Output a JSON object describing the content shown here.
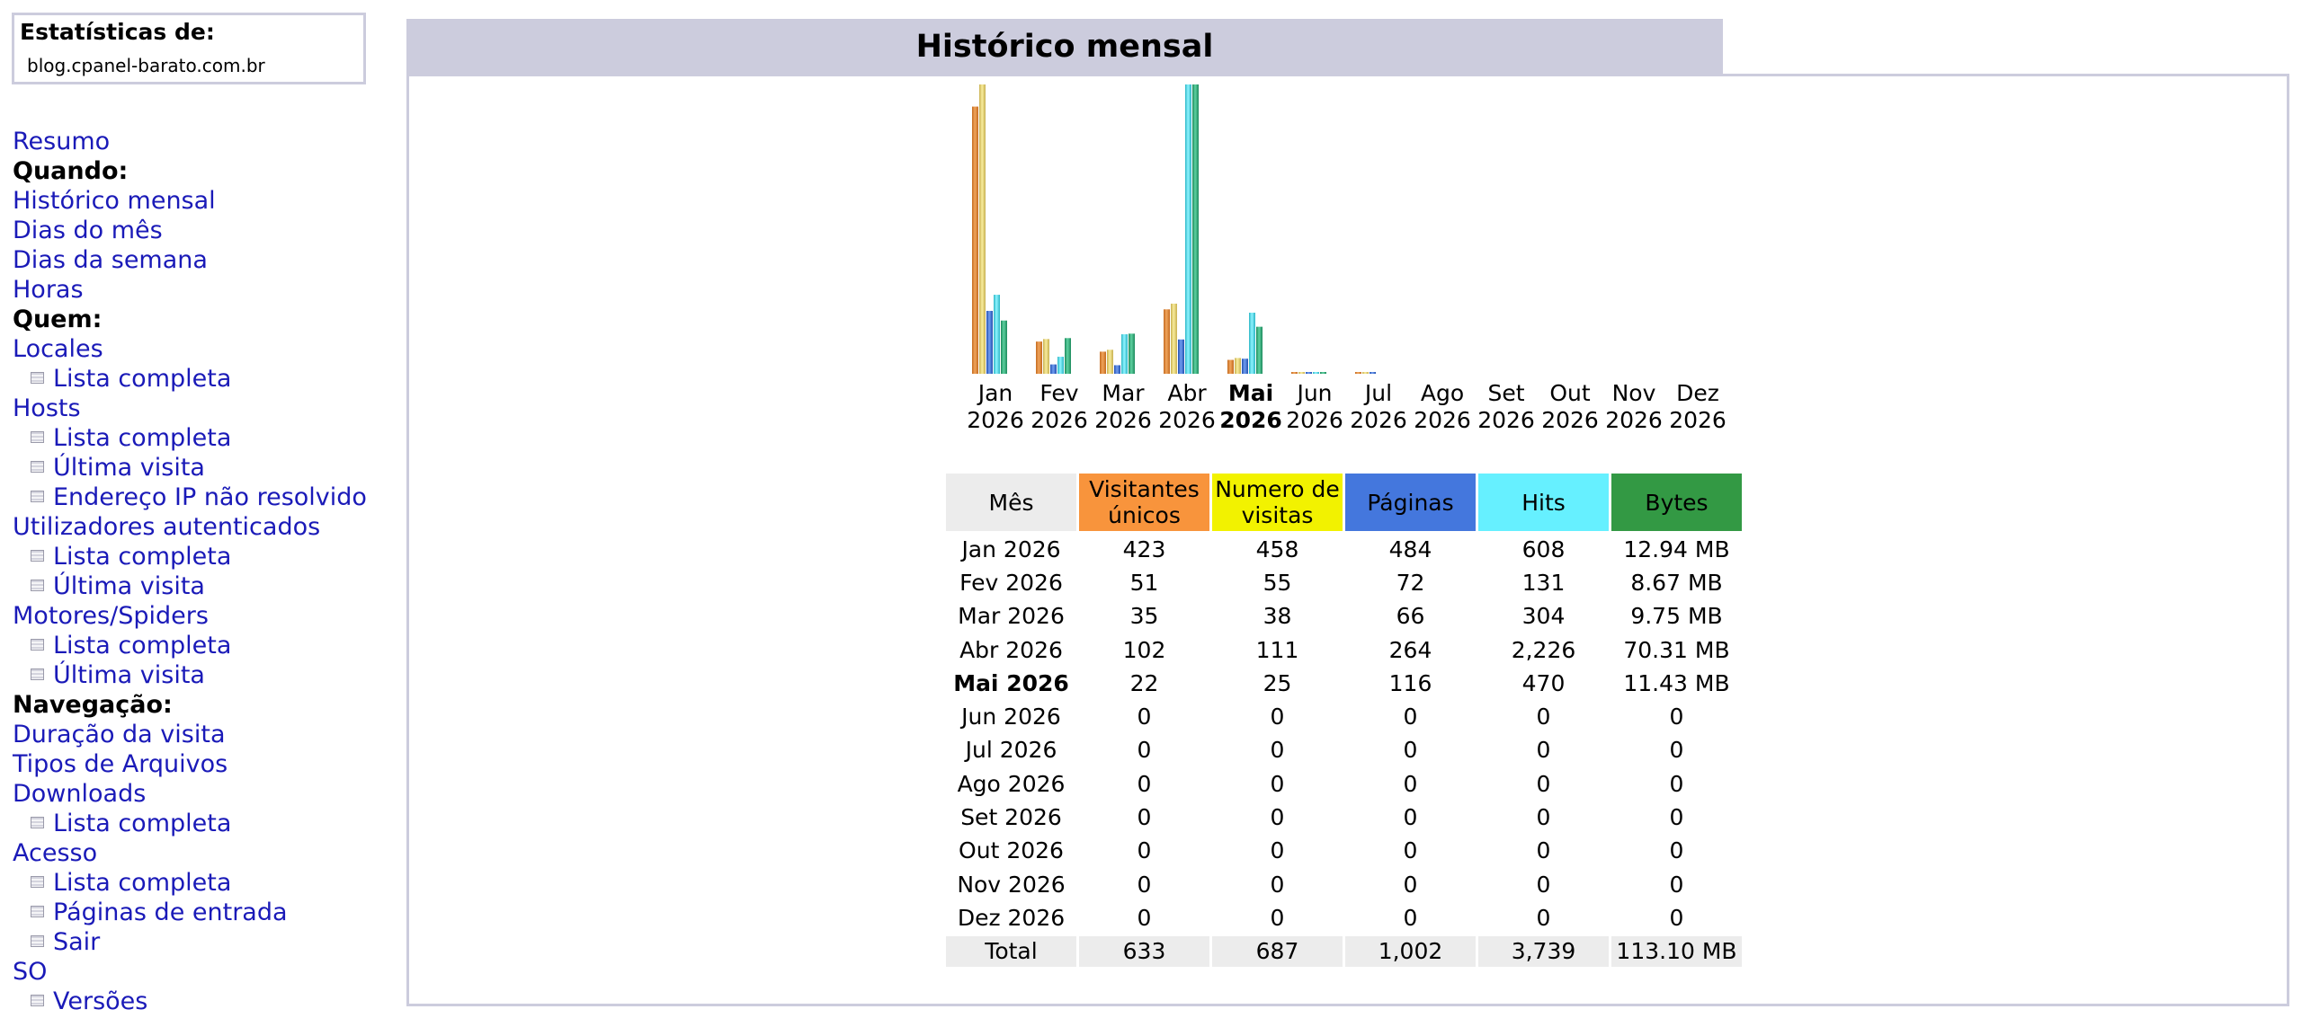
{
  "sidebar": {
    "stats_title": "Estatísticas de:",
    "domain": "blog.cpanel-barato.com.br",
    "menu": [
      {
        "type": "link",
        "label": "Resumo"
      },
      {
        "type": "head",
        "label": "Quando:"
      },
      {
        "type": "link",
        "label": "Histórico mensal"
      },
      {
        "type": "link",
        "label": "Dias do mês"
      },
      {
        "type": "link",
        "label": "Dias da semana"
      },
      {
        "type": "link",
        "label": "Horas"
      },
      {
        "type": "head",
        "label": "Quem:"
      },
      {
        "type": "link",
        "label": "Locales"
      },
      {
        "type": "sub",
        "label": "Lista completa"
      },
      {
        "type": "link",
        "label": "Hosts"
      },
      {
        "type": "sub",
        "label": "Lista completa"
      },
      {
        "type": "sub",
        "label": "Última visita"
      },
      {
        "type": "sub",
        "label": "Endereço IP não resolvido"
      },
      {
        "type": "link",
        "label": "Utilizadores autenticados"
      },
      {
        "type": "sub",
        "label": "Lista completa"
      },
      {
        "type": "sub",
        "label": "Última visita"
      },
      {
        "type": "link",
        "label": "Motores/Spiders"
      },
      {
        "type": "sub",
        "label": "Lista completa"
      },
      {
        "type": "sub",
        "label": "Última visita"
      },
      {
        "type": "head",
        "label": "Navegação:"
      },
      {
        "type": "link",
        "label": "Duração da visita"
      },
      {
        "type": "link",
        "label": "Tipos de Arquivos"
      },
      {
        "type": "link",
        "label": "Downloads"
      },
      {
        "type": "sub",
        "label": "Lista completa"
      },
      {
        "type": "link",
        "label": "Acesso"
      },
      {
        "type": "sub",
        "label": "Lista completa"
      },
      {
        "type": "sub",
        "label": "Páginas de entrada"
      },
      {
        "type": "sub",
        "label": "Sair"
      },
      {
        "type": "link",
        "label": "SO"
      },
      {
        "type": "sub",
        "label": "Versões"
      }
    ]
  },
  "section": {
    "title": "Histórico mensal"
  },
  "colors": {
    "visitors": "#f8943c",
    "visits": "#f2f200",
    "pages": "#4477dd",
    "hits": "#66f0ff",
    "bytes": "#339944"
  },
  "chart_data": {
    "type": "bar",
    "categories": [
      "Jan 2026",
      "Fev 2026",
      "Mar 2026",
      "Abr 2026",
      "Mai 2026",
      "Jun 2026",
      "Jul 2026",
      "Ago 2026",
      "Set 2026",
      "Out 2026",
      "Nov 2026",
      "Dez 2026"
    ],
    "month_labels": [
      {
        "m": "Jan",
        "y": "2026"
      },
      {
        "m": "Fev",
        "y": "2026"
      },
      {
        "m": "Mar",
        "y": "2026"
      },
      {
        "m": "Abr",
        "y": "2026"
      },
      {
        "m": "Mai",
        "y": "2026",
        "current": true
      },
      {
        "m": "Jun",
        "y": "2026"
      },
      {
        "m": "Jul",
        "y": "2026"
      },
      {
        "m": "Ago",
        "y": "2026"
      },
      {
        "m": "Set",
        "y": "2026"
      },
      {
        "m": "Out",
        "y": "2026"
      },
      {
        "m": "Nov",
        "y": "2026"
      },
      {
        "m": "Dez",
        "y": "2026"
      }
    ],
    "series": [
      {
        "name": "Visitantes únicos",
        "values": [
          423,
          51,
          35,
          102,
          22,
          0,
          0,
          0,
          0,
          0,
          0,
          0
        ]
      },
      {
        "name": "Numero de visitas",
        "values": [
          458,
          55,
          38,
          111,
          25,
          0,
          0,
          0,
          0,
          0,
          0,
          0
        ]
      },
      {
        "name": "Páginas",
        "values": [
          484,
          72,
          66,
          264,
          116,
          0,
          0,
          0,
          0,
          0,
          0,
          0
        ]
      },
      {
        "name": "Hits",
        "values": [
          608,
          131,
          304,
          2226,
          470,
          0,
          0,
          0,
          0,
          0,
          0,
          0
        ]
      },
      {
        "name": "Bytes",
        "values": [
          12.94,
          8.67,
          9.75,
          70.31,
          11.43,
          0,
          0,
          0,
          0,
          0,
          0,
          0
        ]
      }
    ]
  },
  "table": {
    "headers": {
      "month": "Mês",
      "visitors": "Visitantes únicos",
      "visits": "Numero de visitas",
      "pages": "Páginas",
      "hits": "Hits",
      "bytes": "Bytes"
    },
    "rows": [
      {
        "month": "Jan 2026",
        "visitors": "423",
        "visits": "458",
        "pages": "484",
        "hits": "608",
        "bytes": "12.94 MB"
      },
      {
        "month": "Fev 2026",
        "visitors": "51",
        "visits": "55",
        "pages": "72",
        "hits": "131",
        "bytes": "8.67 MB"
      },
      {
        "month": "Mar 2026",
        "visitors": "35",
        "visits": "38",
        "pages": "66",
        "hits": "304",
        "bytes": "9.75 MB"
      },
      {
        "month": "Abr 2026",
        "visitors": "102",
        "visits": "111",
        "pages": "264",
        "hits": "2,226",
        "bytes": "70.31 MB"
      },
      {
        "month": "Mai 2026",
        "visitors": "22",
        "visits": "25",
        "pages": "116",
        "hits": "470",
        "bytes": "11.43 MB",
        "current": true
      },
      {
        "month": "Jun 2026",
        "visitors": "0",
        "visits": "0",
        "pages": "0",
        "hits": "0",
        "bytes": "0"
      },
      {
        "month": "Jul 2026",
        "visitors": "0",
        "visits": "0",
        "pages": "0",
        "hits": "0",
        "bytes": "0"
      },
      {
        "month": "Ago 2026",
        "visitors": "0",
        "visits": "0",
        "pages": "0",
        "hits": "0",
        "bytes": "0"
      },
      {
        "month": "Set 2026",
        "visitors": "0",
        "visits": "0",
        "pages": "0",
        "hits": "0",
        "bytes": "0"
      },
      {
        "month": "Out 2026",
        "visitors": "0",
        "visits": "0",
        "pages": "0",
        "hits": "0",
        "bytes": "0"
      },
      {
        "month": "Nov 2026",
        "visitors": "0",
        "visits": "0",
        "pages": "0",
        "hits": "0",
        "bytes": "0"
      },
      {
        "month": "Dez 2026",
        "visitors": "0",
        "visits": "0",
        "pages": "0",
        "hits": "0",
        "bytes": "0"
      }
    ],
    "total": {
      "label": "Total",
      "visitors": "633",
      "visits": "687",
      "pages": "1,002",
      "hits": "3,739",
      "bytes": "113.10 MB"
    }
  }
}
